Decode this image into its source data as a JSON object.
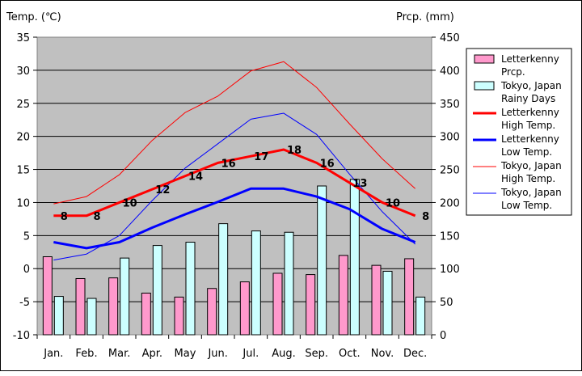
{
  "chart_data": {
    "type": "bar+line",
    "left_axis_label": "Temp. (℃)",
    "right_axis_label": "Prcp. (mm)",
    "categories": [
      "Jan.",
      "Feb.",
      "Mar.",
      "Apr.",
      "May",
      "Jun.",
      "Jul.",
      "Aug.",
      "Sep.",
      "Oct.",
      "Nov.",
      "Dec."
    ],
    "ylim_left": [
      -10,
      35
    ],
    "ylim_right": [
      0,
      450
    ],
    "left_ticks": [
      "35",
      "30",
      "25",
      "20",
      "15",
      "10",
      "5",
      "0",
      "-5",
      "-10"
    ],
    "right_ticks": [
      "450",
      "400",
      "350",
      "300",
      "250",
      "200",
      "150",
      "100",
      "50",
      "0"
    ],
    "grid": true,
    "legend_position": "right",
    "bar_series": [
      {
        "name": "Letterkenny\nPrcp.",
        "axis": "right",
        "color": "#ff99cc",
        "values": [
          118,
          85,
          86,
          63,
          57,
          70,
          80,
          93,
          91,
          120,
          105,
          115
        ]
      },
      {
        "name": "Tokyo, Japan\nRainy Days",
        "axis": "right",
        "color": "#ccffff",
        "values": [
          58,
          55,
          116,
          135,
          140,
          168,
          157,
          155,
          225,
          235,
          96,
          57
        ]
      }
    ],
    "line_series": [
      {
        "name": "Letterkenny\nHigh Temp.",
        "axis": "left",
        "color": "#ff0000",
        "width": 3,
        "values": [
          8,
          8,
          10,
          12,
          14,
          16,
          17,
          18,
          16,
          13,
          10,
          8
        ],
        "labels": [
          "8",
          "8",
          "10",
          "12",
          "14",
          "16",
          "17",
          "18",
          "16",
          "13",
          "10",
          "8"
        ]
      },
      {
        "name": "Letterkenny\nLow Temp.",
        "axis": "left",
        "color": "#0000ff",
        "width": 3,
        "values": [
          4,
          3.1,
          4,
          6.2,
          8.2,
          10.1,
          12.1,
          12.1,
          10.9,
          9,
          6,
          4
        ]
      },
      {
        "name": "Tokyo, Japan\nHigh Temp.",
        "axis": "left",
        "color": "#ff0000",
        "width": 1,
        "values": [
          9.8,
          10.9,
          14.2,
          19.4,
          23.6,
          26.1,
          29.9,
          31.3,
          27.4,
          21.9,
          16.6,
          12.1
        ]
      },
      {
        "name": "Tokyo, Japan\nLow Temp.",
        "axis": "left",
        "color": "#0000ff",
        "width": 1,
        "values": [
          1.3,
          2.2,
          5.0,
          10.3,
          15.2,
          18.9,
          22.6,
          23.5,
          20.3,
          14.3,
          8.6,
          3.7
        ]
      }
    ]
  }
}
